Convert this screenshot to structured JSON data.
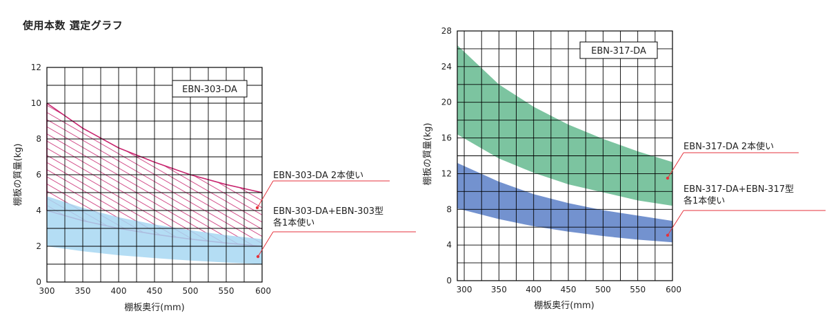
{
  "page": {
    "heading": "使用本数 選定グラフ"
  },
  "colors": {
    "hatch": "#c8246e",
    "light_blue": "#a7d7f2",
    "green": "#7cc4a0",
    "blue": "#7392cf",
    "grid": "#000000",
    "leader": "#e5323b"
  },
  "chart_data": [
    {
      "type": "area",
      "model_label": "EBN-303-DA",
      "xlabel": "棚板奥行(mm)",
      "ylabel": "棚板の質量(kg)",
      "xlim": [
        300,
        600
      ],
      "ylim": [
        0,
        12
      ],
      "x_ticks": [
        "300",
        "350",
        "400",
        "450",
        "500",
        "550",
        "600"
      ],
      "y_ticks": [
        "0",
        "2",
        "4",
        "6",
        "8",
        "10",
        "12"
      ],
      "x_minor_step": 25,
      "y_minor_step": 1,
      "series": [
        {
          "name": "EBN-303-DA 2本使い",
          "style": "hatch",
          "x": [
            300,
            350,
            400,
            450,
            500,
            550,
            600
          ],
          "upper": [
            10.0,
            8.6,
            7.5,
            6.7,
            6.0,
            5.45,
            5.0
          ],
          "lower": [
            4.0,
            3.43,
            3.0,
            2.67,
            2.4,
            2.18,
            2.0
          ]
        },
        {
          "name": "EBN-303-DA+EBN-303型 各1本使い",
          "style": "fill",
          "x": [
            300,
            350,
            400,
            450,
            500,
            550,
            600
          ],
          "upper": [
            4.8,
            4.15,
            3.62,
            3.22,
            2.9,
            2.62,
            2.4
          ],
          "lower": [
            2.0,
            1.72,
            1.5,
            1.34,
            1.2,
            1.09,
            1.0
          ]
        }
      ],
      "callouts": [
        {
          "lines": [
            "EBN-303-DA 2本使い"
          ]
        },
        {
          "lines": [
            "EBN-303-DA+EBN-303型",
            "各1本使い"
          ]
        }
      ]
    },
    {
      "type": "area",
      "model_label": "EBN-317-DA",
      "xlabel": "棚板奥行(mm)",
      "ylabel": "棚板の質量(kg)",
      "xlim": [
        290,
        600
      ],
      "ylim": [
        0,
        28
      ],
      "x_ticks": [
        "300",
        "350",
        "400",
        "450",
        "500",
        "550",
        "600"
      ],
      "x_tick_values": [
        300,
        350,
        400,
        450,
        500,
        550,
        600
      ],
      "y_ticks": [
        "0",
        "4",
        "8",
        "12",
        "16",
        "20",
        "24",
        "28"
      ],
      "x_minor_step": 25,
      "y_minor_step": 2,
      "series": [
        {
          "name": "EBN-317-DA 2本使い",
          "style": "fill",
          "x": [
            290,
            350,
            400,
            450,
            500,
            550,
            600
          ],
          "upper": [
            26.4,
            22.0,
            19.5,
            17.5,
            15.9,
            14.5,
            13.3
          ],
          "lower": [
            16.4,
            13.7,
            12.1,
            10.8,
            9.9,
            9.0,
            8.4
          ]
        },
        {
          "name": "EBN-317-DA+EBN-317型 各1本使い",
          "style": "fill",
          "x": [
            290,
            350,
            400,
            450,
            500,
            550,
            600
          ],
          "upper": [
            13.2,
            11.1,
            9.7,
            8.7,
            7.9,
            7.3,
            6.7
          ],
          "lower": [
            8.1,
            6.9,
            6.1,
            5.5,
            5.0,
            4.6,
            4.3
          ]
        }
      ],
      "callouts": [
        {
          "lines": [
            "EBN-317-DA 2本使い"
          ]
        },
        {
          "lines": [
            "EBN-317-DA+EBN-317型",
            "各1本使い"
          ]
        }
      ]
    }
  ]
}
